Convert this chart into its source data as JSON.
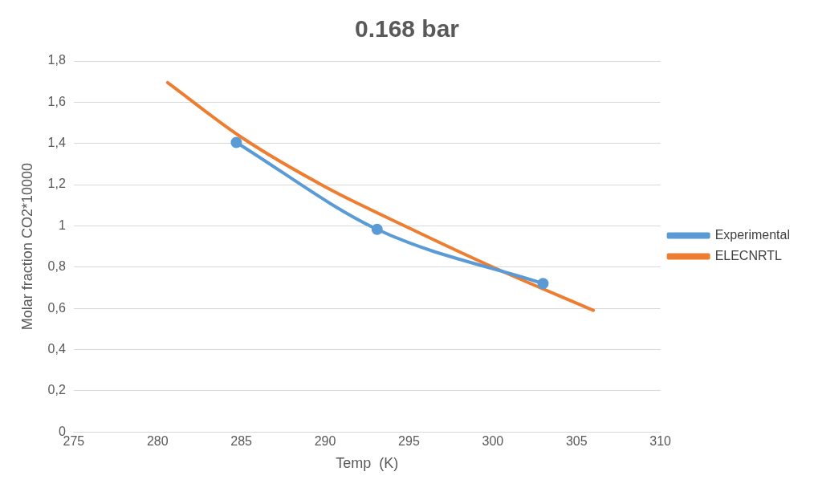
{
  "chart_data": {
    "type": "line",
    "title": "0.168 bar",
    "xlabel": "Temp  (K)",
    "ylabel": "Molar fraction CO2*10000",
    "xlim": [
      275,
      310
    ],
    "xticks": [
      275,
      280,
      285,
      290,
      295,
      300,
      305,
      310
    ],
    "ylim": [
      0,
      1.8
    ],
    "yticks": [
      0,
      {
        "value": 0.2,
        "label": "0,2"
      },
      {
        "value": 0.4,
        "label": "0,4"
      },
      {
        "value": 0.6,
        "label": "0,6"
      },
      {
        "value": 0.8,
        "label": "0,8"
      },
      1,
      {
        "value": 1.2,
        "label": "1,2"
      },
      {
        "value": 1.4,
        "label": "1,4"
      },
      {
        "value": 1.6,
        "label": "1,6"
      },
      {
        "value": 1.8,
        "label": "1,8"
      }
    ],
    "grid": "y",
    "legend": "right",
    "series": [
      {
        "name": "Experimental",
        "color": "#5b9bd5",
        "marker": "circle",
        "x": [
          284.7,
          293.1,
          303.0
        ],
        "values": [
          1.405,
          0.983,
          0.72
        ]
      },
      {
        "name": "ELECNRTL",
        "color": "#ed7d31",
        "marker": "none",
        "x": [
          280.6,
          285,
          290,
          295,
          300,
          306.0
        ],
        "values": [
          1.695,
          1.43,
          1.19,
          0.99,
          0.8,
          0.59
        ]
      }
    ]
  }
}
